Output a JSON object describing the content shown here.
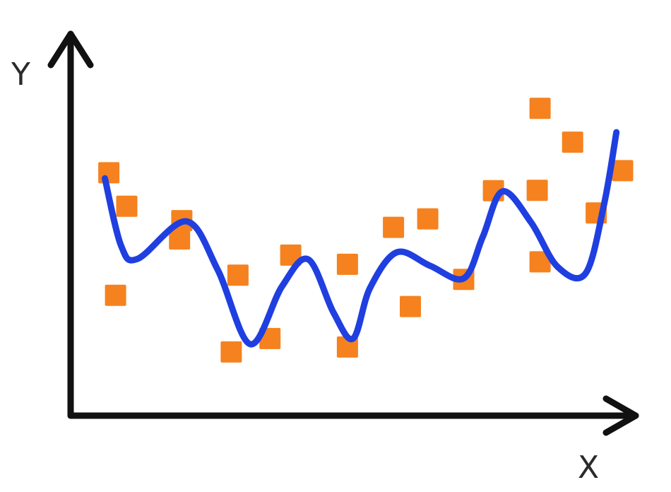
{
  "chart_data": {
    "type": "scatter",
    "xlabel": "X",
    "ylabel": "Y",
    "xlim": [
      0,
      10
    ],
    "ylim": [
      0,
      10
    ],
    "grid": false,
    "colors": {
      "points": "#f5821f",
      "fit": "#1f3fe0",
      "axes": "#111111"
    },
    "series": [
      {
        "kind": "points",
        "x": [
          0.68,
          1.0,
          0.8,
          1.98,
          1.94,
          2.86,
          2.98,
          3.55,
          3.92,
          4.93,
          4.93,
          5.75,
          6.05,
          6.36,
          7.0,
          7.53,
          8.36,
          8.31,
          8.36,
          8.94,
          9.36,
          9.83
        ],
        "y": [
          6.9,
          5.95,
          3.42,
          5.54,
          5.02,
          1.81,
          3.99,
          2.19,
          4.56,
          1.95,
          4.3,
          5.35,
          3.1,
          5.59,
          3.87,
          6.39,
          4.37,
          6.4,
          8.73,
          7.77,
          5.76,
          6.96
        ]
      },
      {
        "kind": "fit",
        "x": [
          0.61,
          0.9,
          1.2,
          2.06,
          2.62,
          3.2,
          3.76,
          4.23,
          4.68,
          5.03,
          5.33,
          5.81,
          6.4,
          7.0,
          7.34,
          7.69,
          8.2,
          8.67,
          9.17,
          9.5,
          9.72
        ],
        "y": [
          6.74,
          4.82,
          4.46,
          5.52,
          4.14,
          2.03,
          3.66,
          4.44,
          2.93,
          2.19,
          3.62,
          4.64,
          4.26,
          3.9,
          5.08,
          6.37,
          5.49,
          4.23,
          4.04,
          6.01,
          8.05
        ]
      }
    ]
  }
}
